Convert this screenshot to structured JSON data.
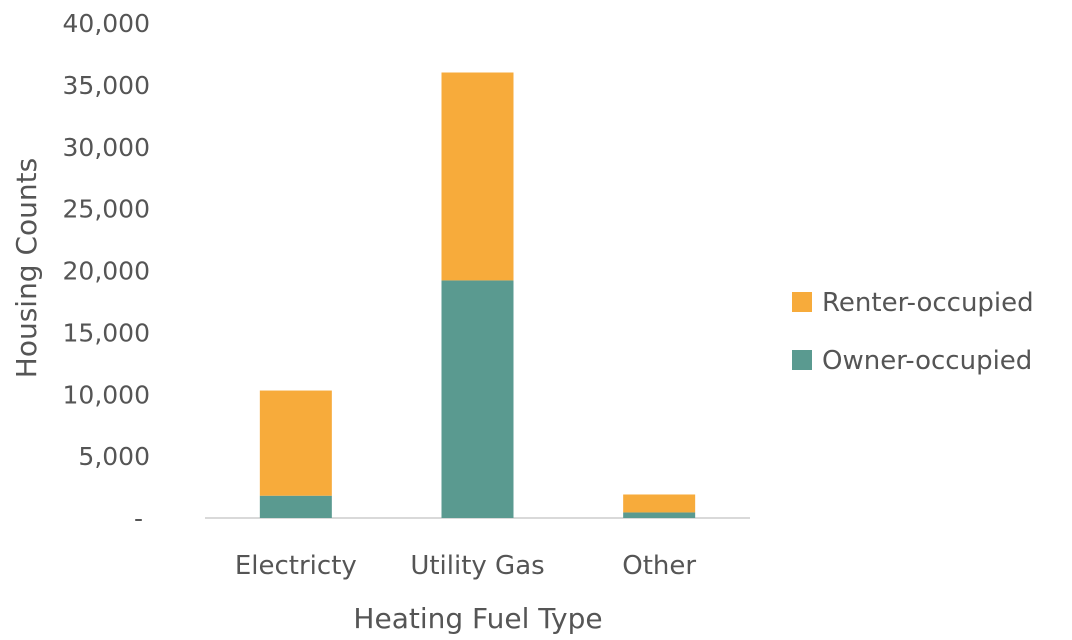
{
  "chart_data": {
    "type": "bar",
    "stacked": true,
    "title": "",
    "xlabel": "Heating Fuel Type",
    "ylabel": "Housing Counts",
    "categories": [
      "Electricty",
      "Utility Gas",
      "Other"
    ],
    "series": [
      {
        "name": "Owner-occupied",
        "color": "#5a9a90",
        "values": [
          1800,
          19200,
          450
        ]
      },
      {
        "name": "Renter-occupied",
        "color": "#f7ab3b",
        "values": [
          8500,
          16800,
          1450
        ]
      }
    ],
    "ylim": [
      0,
      40000
    ],
    "yticks": [
      0,
      5000,
      10000,
      15000,
      20000,
      25000,
      30000,
      35000,
      40000
    ],
    "ytick_labels": [
      "-",
      "5,000",
      "10,000",
      "15,000",
      "20,000",
      "25,000",
      "30,000",
      "35,000",
      "40,000"
    ],
    "legend": {
      "position": "right",
      "order": [
        "Renter-occupied",
        "Owner-occupied"
      ]
    },
    "grid": false,
    "baseline_color": "#d9d9d9"
  }
}
